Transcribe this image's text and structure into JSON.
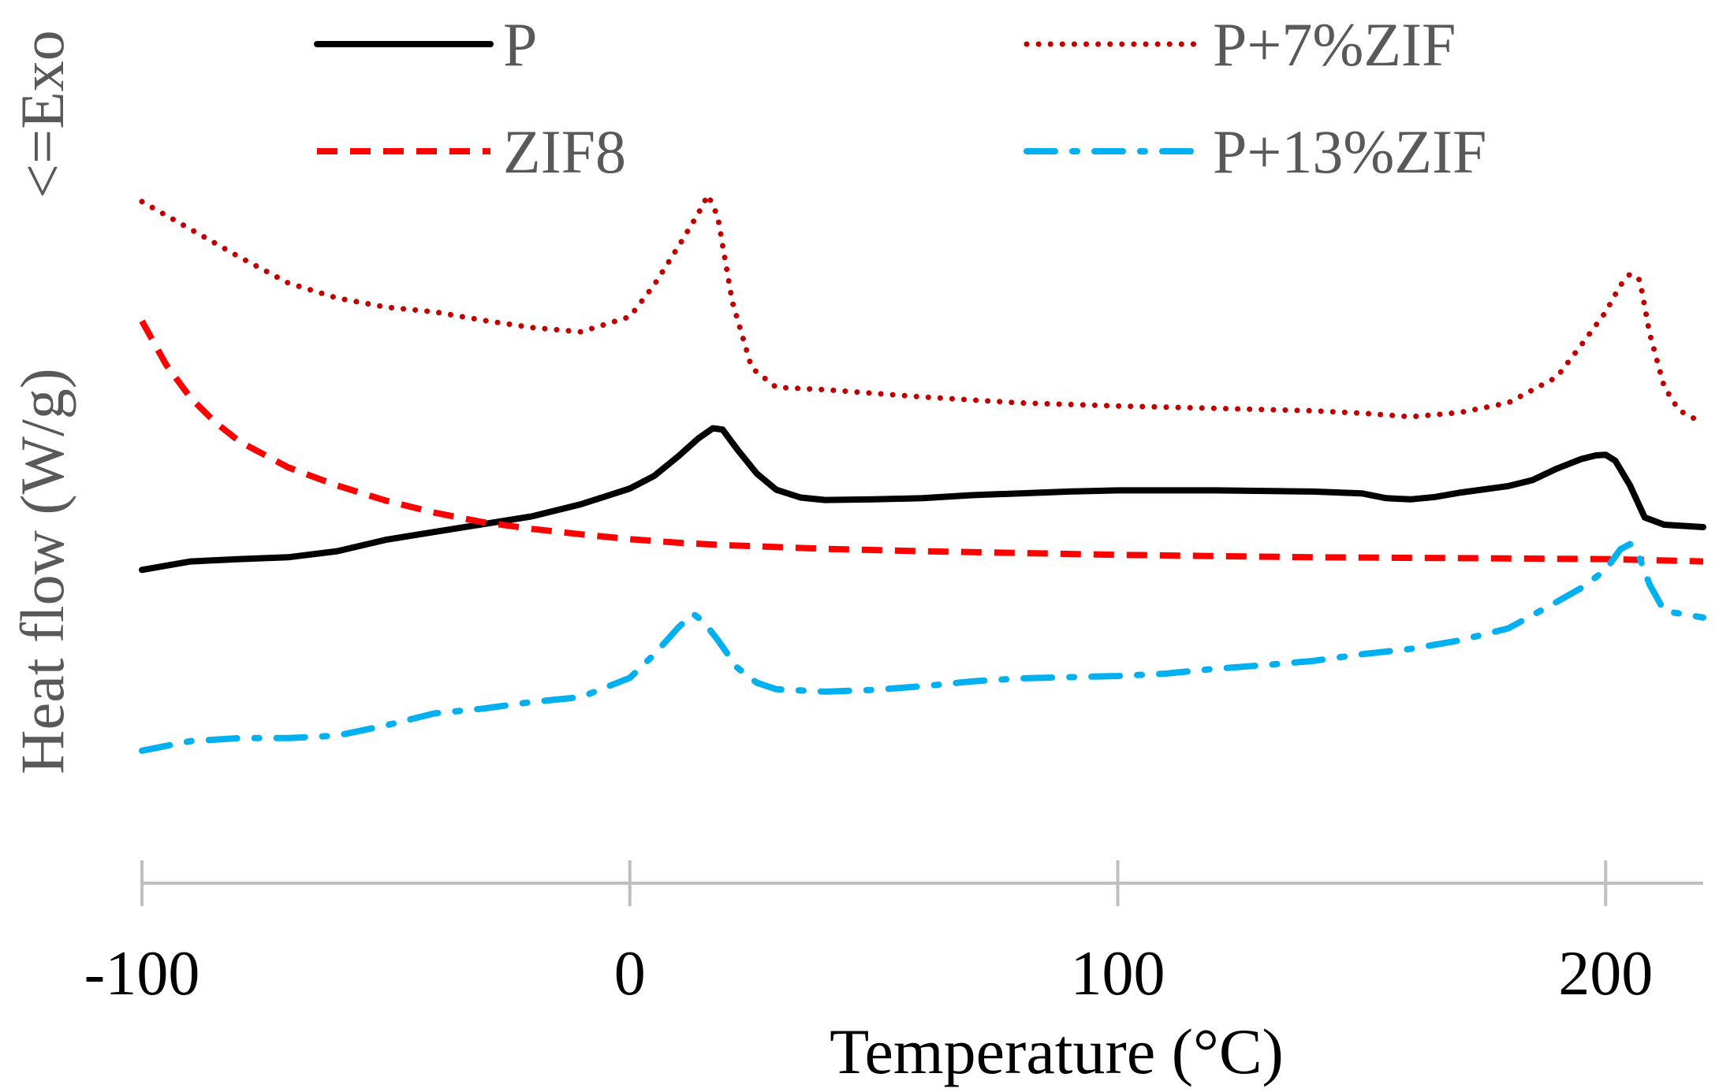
{
  "chart_data": {
    "type": "line",
    "title": "",
    "xlabel": "Temperature (°C)",
    "ylabel": "Heat flow (W/g)",
    "ylabel_direction": "<=Exo",
    "xlim": [
      -100,
      220
    ],
    "ylim": [
      0,
      10
    ],
    "xticks": [
      -100,
      0,
      100,
      200
    ],
    "xtick_labels": [
      "-100",
      "0",
      "100",
      "200"
    ],
    "y_tick_labels_shown": false,
    "grid": false,
    "legend_position": "top",
    "colors": {
      "P": "#000000",
      "ZIF8": "#ff0000",
      "P+7%ZIF": "#c00000",
      "P+13%ZIF": "#00b0f0",
      "axis": "#bfbfbf",
      "label": "#595959",
      "tick_label": "#000000"
    },
    "series": [
      {
        "name": "P",
        "style": "solid",
        "x": [
          -100,
          -90,
          -80,
          -70,
          -60,
          -50,
          -40,
          -30,
          -20,
          -10,
          0,
          5,
          10,
          14,
          17,
          19,
          22,
          26,
          30,
          35,
          40,
          50,
          60,
          70,
          80,
          90,
          100,
          110,
          120,
          130,
          140,
          150,
          155,
          160,
          165,
          170,
          180,
          185,
          190,
          195,
          198,
          200,
          202,
          205,
          208,
          212,
          220
        ],
        "y": [
          4.27,
          4.41,
          4.45,
          4.48,
          4.58,
          4.77,
          4.9,
          5.03,
          5.16,
          5.36,
          5.62,
          5.83,
          6.16,
          6.45,
          6.62,
          6.6,
          6.27,
          5.87,
          5.6,
          5.47,
          5.43,
          5.44,
          5.46,
          5.51,
          5.54,
          5.57,
          5.59,
          5.59,
          5.59,
          5.58,
          5.57,
          5.54,
          5.46,
          5.44,
          5.48,
          5.55,
          5.66,
          5.76,
          5.95,
          6.11,
          6.17,
          6.18,
          6.08,
          5.67,
          5.14,
          5.02,
          4.98
        ]
      },
      {
        "name": "ZIF8",
        "style": "dashed",
        "x": [
          -100,
          -95,
          -90,
          -85,
          -80,
          -70,
          -60,
          -50,
          -40,
          -30,
          -20,
          -10,
          0,
          10,
          20,
          40,
          60,
          80,
          100,
          120,
          140,
          160,
          180,
          200,
          220
        ],
        "y": [
          8.4,
          7.67,
          7.12,
          6.72,
          6.4,
          5.97,
          5.67,
          5.42,
          5.22,
          5.06,
          4.95,
          4.86,
          4.78,
          4.72,
          4.68,
          4.62,
          4.58,
          4.55,
          4.52,
          4.5,
          4.48,
          4.47,
          4.46,
          4.45,
          4.41
        ]
      },
      {
        "name": "P+7%ZIF",
        "style": "dotted",
        "x": [
          -100,
          -90,
          -80,
          -70,
          -60,
          -50,
          -40,
          -30,
          -20,
          -10,
          0,
          5,
          10,
          14,
          16,
          18,
          21,
          25,
          30,
          40,
          50,
          60,
          70,
          80,
          100,
          120,
          140,
          150,
          160,
          170,
          180,
          190,
          195,
          200,
          203,
          205,
          207,
          209,
          212,
          215,
          220
        ],
        "y": [
          10.38,
          9.92,
          9.46,
          9.03,
          8.78,
          8.63,
          8.55,
          8.41,
          8.29,
          8.22,
          8.47,
          9.0,
          9.64,
          10.18,
          10.49,
          10.14,
          8.72,
          7.62,
          7.3,
          7.26,
          7.2,
          7.14,
          7.09,
          7.04,
          6.99,
          6.95,
          6.91,
          6.87,
          6.81,
          6.88,
          7.04,
          7.47,
          8.0,
          8.55,
          8.99,
          9.18,
          9.08,
          8.2,
          7.31,
          6.92,
          6.7
        ]
      },
      {
        "name": "P+13%ZIF",
        "style": "dashdot",
        "x": [
          -100,
          -90,
          -80,
          -70,
          -60,
          -50,
          -40,
          -30,
          -20,
          -10,
          0,
          5,
          10,
          13,
          15,
          18,
          22,
          26,
          30,
          40,
          50,
          60,
          70,
          80,
          90,
          100,
          110,
          120,
          130,
          140,
          150,
          160,
          170,
          180,
          190,
          195,
          200,
          203,
          205,
          207,
          209,
          212,
          220
        ],
        "y": [
          1.27,
          1.43,
          1.48,
          1.48,
          1.52,
          1.69,
          1.89,
          1.97,
          2.08,
          2.16,
          2.48,
          2.87,
          3.32,
          3.54,
          3.42,
          3.11,
          2.65,
          2.4,
          2.29,
          2.25,
          2.28,
          2.34,
          2.42,
          2.47,
          2.49,
          2.51,
          2.55,
          2.63,
          2.69,
          2.76,
          2.87,
          2.96,
          3.1,
          3.3,
          3.74,
          3.97,
          4.27,
          4.61,
          4.7,
          4.46,
          4.03,
          3.59,
          3.48
        ]
      }
    ]
  }
}
